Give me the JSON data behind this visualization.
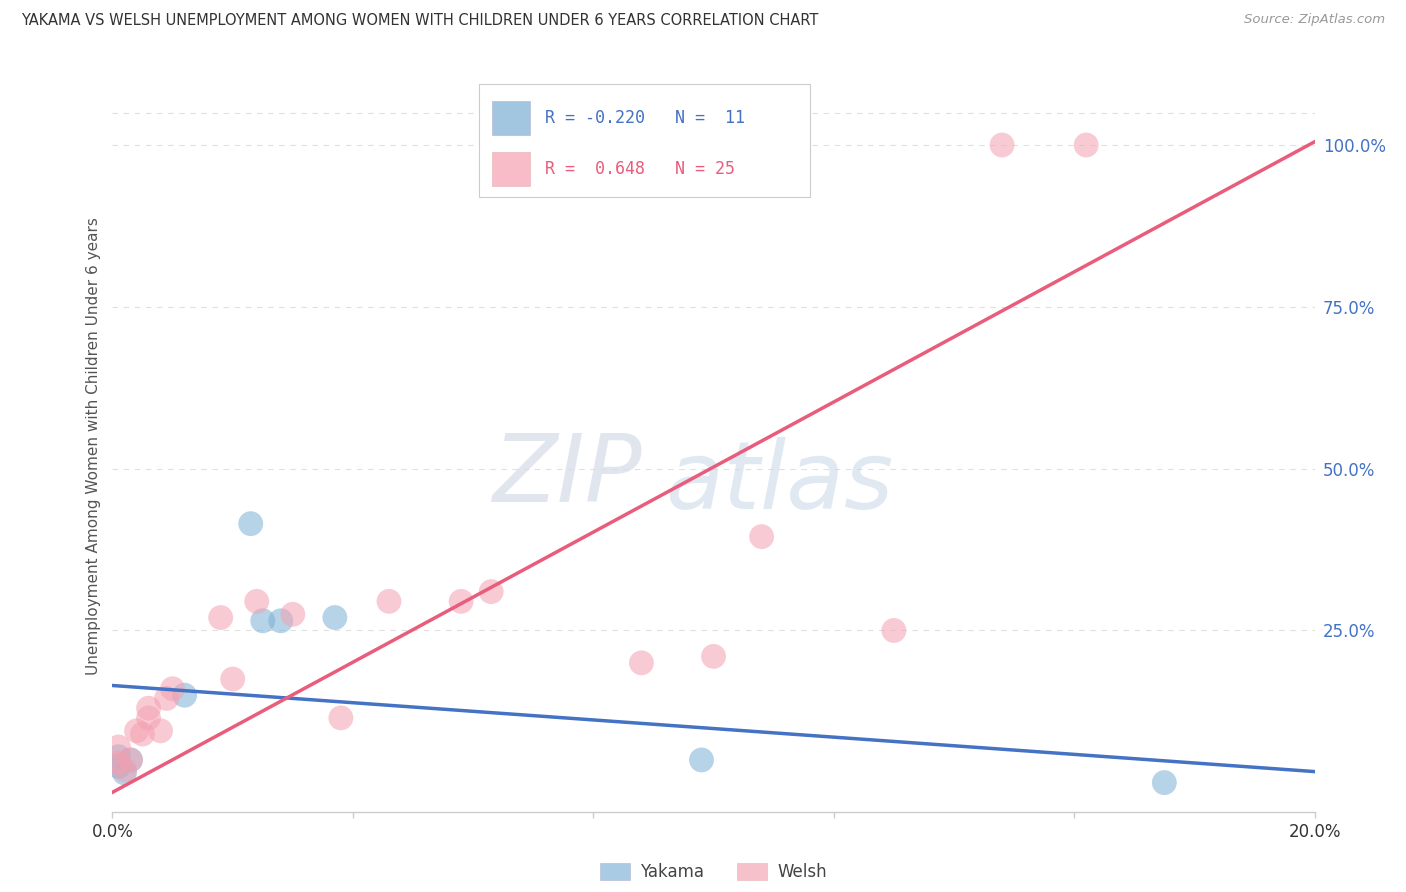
{
  "title": "YAKAMA VS WELSH UNEMPLOYMENT AMONG WOMEN WITH CHILDREN UNDER 6 YEARS CORRELATION CHART",
  "source": "Source: ZipAtlas.com",
  "ylabel": "Unemployment Among Women with Children Under 6 years",
  "xlim": [
    0.0,
    0.2
  ],
  "ylim": [
    -0.03,
    1.1
  ],
  "xticks": [
    0.0,
    0.04,
    0.08,
    0.12,
    0.16,
    0.2
  ],
  "yticks_right": [
    0.25,
    0.5,
    0.75,
    1.0
  ],
  "yticklabels_right": [
    "25.0%",
    "50.0%",
    "75.0%",
    "100.0%"
  ],
  "legend_r_yakama": "-0.220",
  "legend_n_yakama": "11",
  "legend_r_welsh": "0.648",
  "legend_n_welsh": "25",
  "yakama_color": "#7bafd4",
  "welsh_color": "#f4a0b0",
  "line_yakama_color": "#4472c4",
  "line_welsh_color": "#e95c7b",
  "yakama_scatter": [
    [
      0.001,
      0.055
    ],
    [
      0.001,
      0.04
    ],
    [
      0.002,
      0.03
    ],
    [
      0.003,
      0.05
    ],
    [
      0.012,
      0.15
    ],
    [
      0.023,
      0.415
    ],
    [
      0.025,
      0.265
    ],
    [
      0.028,
      0.265
    ],
    [
      0.037,
      0.27
    ],
    [
      0.098,
      0.05
    ],
    [
      0.175,
      0.015
    ]
  ],
  "welsh_scatter": [
    [
      0.001,
      0.07
    ],
    [
      0.001,
      0.045
    ],
    [
      0.002,
      0.035
    ],
    [
      0.003,
      0.05
    ],
    [
      0.004,
      0.095
    ],
    [
      0.005,
      0.09
    ],
    [
      0.006,
      0.115
    ],
    [
      0.006,
      0.13
    ],
    [
      0.008,
      0.095
    ],
    [
      0.009,
      0.145
    ],
    [
      0.01,
      0.16
    ],
    [
      0.018,
      0.27
    ],
    [
      0.02,
      0.175
    ],
    [
      0.024,
      0.295
    ],
    [
      0.03,
      0.275
    ],
    [
      0.038,
      0.115
    ],
    [
      0.046,
      0.295
    ],
    [
      0.058,
      0.295
    ],
    [
      0.063,
      0.31
    ],
    [
      0.088,
      0.2
    ],
    [
      0.1,
      0.21
    ],
    [
      0.108,
      0.395
    ],
    [
      0.13,
      0.25
    ],
    [
      0.148,
      1.0
    ],
    [
      0.162,
      1.0
    ]
  ],
  "yakama_line_x": [
    0.0,
    0.2
  ],
  "yakama_line_y": [
    0.165,
    0.032
  ],
  "welsh_line_x": [
    0.0,
    0.2
  ],
  "welsh_line_y": [
    0.0,
    1.005
  ],
  "watermark_zip": "ZIP",
  "watermark_atlas": "atlas",
  "background_color": "#ffffff",
  "grid_color": "#e0e0e0"
}
